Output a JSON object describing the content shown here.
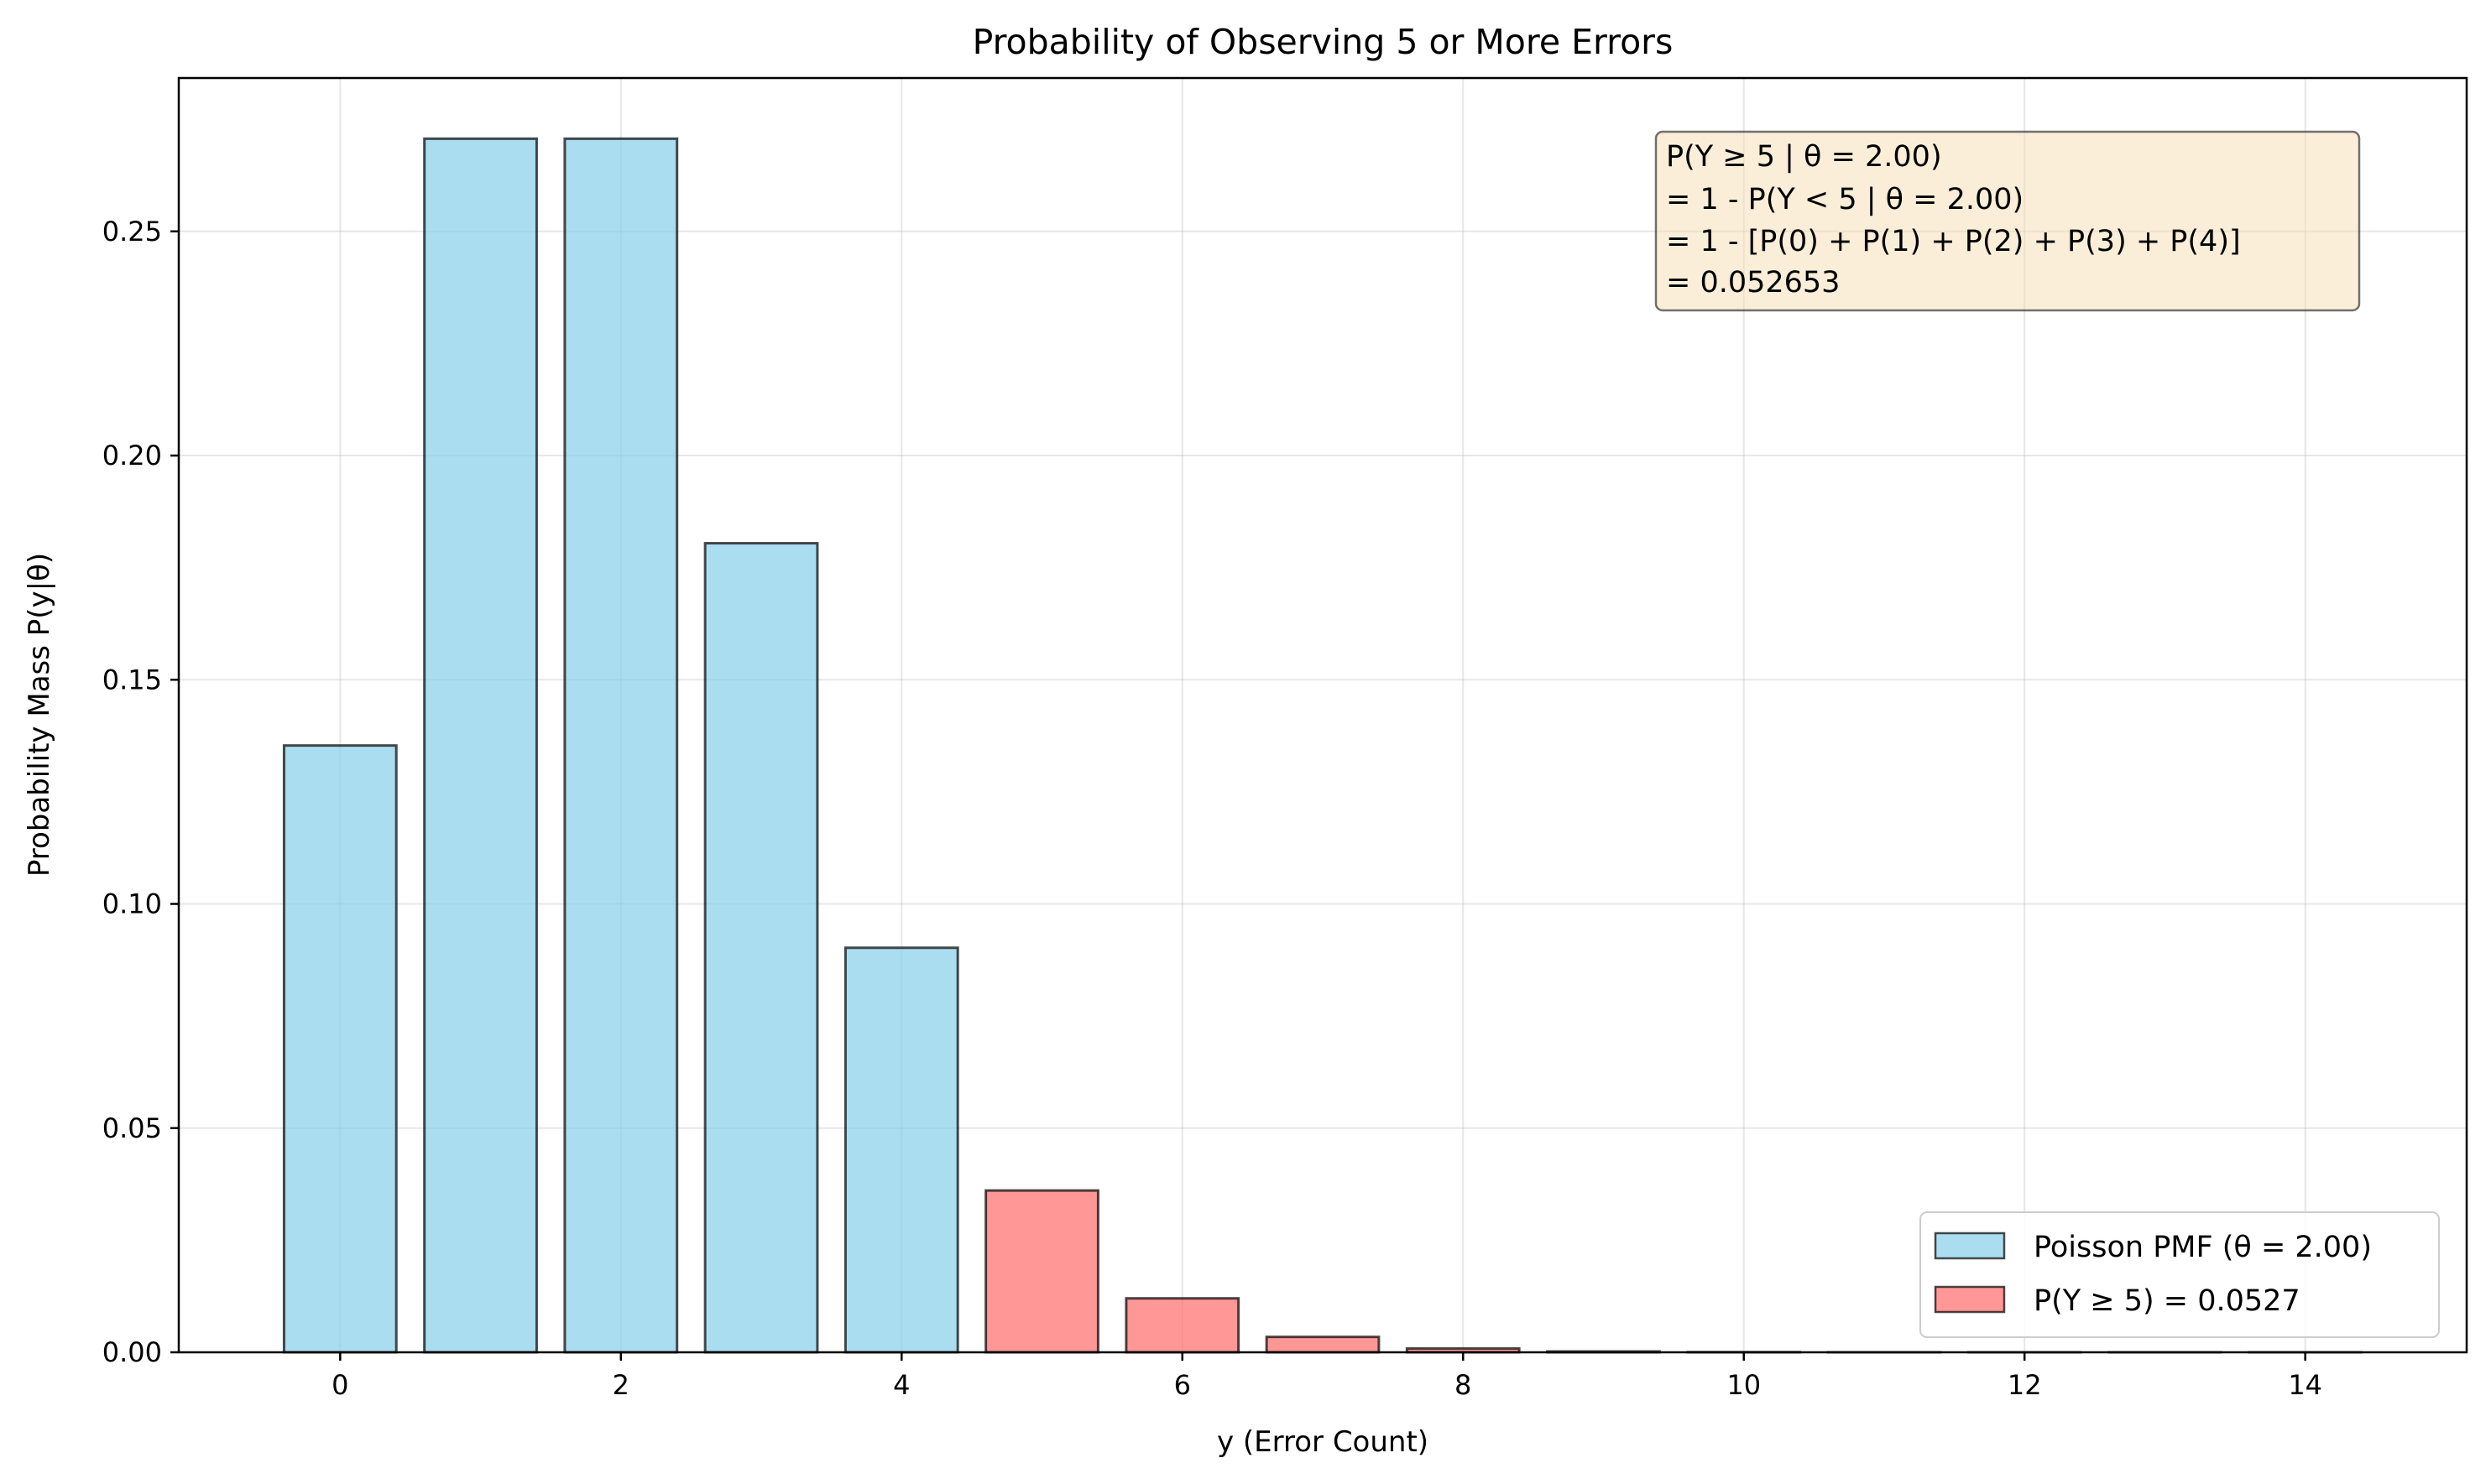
{
  "chart_data": {
    "type": "bar",
    "title": "Probability of Observing 5 or More Errors",
    "xlabel": "y (Error Count)",
    "ylabel": "Probability Mass P(y|θ)",
    "xlim": [
      -1.15,
      15.15
    ],
    "ylim": [
      0,
      0.2842
    ],
    "x": [
      0,
      1,
      2,
      3,
      4,
      5,
      6,
      7,
      8,
      9,
      10,
      11,
      12,
      13,
      14
    ],
    "values": [
      0.135335,
      0.270671,
      0.270671,
      0.180447,
      0.090224,
      0.036089,
      0.01203,
      0.003437,
      0.000859,
      0.000191,
      3.8e-05,
      7e-06,
      1e-06,
      2e-07,
      3e-08
    ],
    "highlight_from": 5,
    "xticks": [
      0,
      2,
      4,
      6,
      8,
      10,
      12,
      14
    ],
    "xtick_labels": [
      "0",
      "2",
      "4",
      "6",
      "8",
      "10",
      "12",
      "14"
    ],
    "yticks": [
      0.0,
      0.05,
      0.1,
      0.15,
      0.2,
      0.25
    ],
    "ytick_labels": [
      "0.00",
      "0.05",
      "0.10",
      "0.15",
      "0.20",
      "0.25"
    ],
    "grid": true,
    "series": [
      {
        "name": "Poisson PMF (θ = 2.00)",
        "color": "#87CEEB"
      },
      {
        "name": "P(Y ≥ 5) = 0.0527",
        "color": "#FF6B6B"
      }
    ],
    "legend_position": "lower-right",
    "annotation": {
      "position": "upper-right",
      "lines": [
        "P(Y ≥ 5 | θ = 2.00)",
        "= 1 - P(Y < 5 | θ = 2.00)",
        "= 1 - [P(0) + P(1) + P(2) + P(3) + P(4)]",
        "= 0.052653"
      ]
    }
  }
}
